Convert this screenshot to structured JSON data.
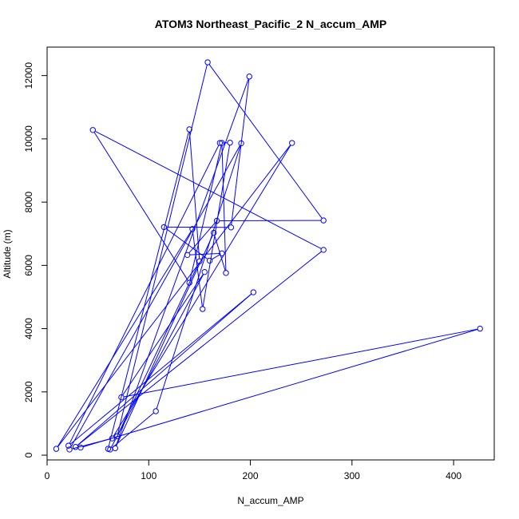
{
  "chart_data": {
    "type": "line",
    "title": "ATOM3 Northeast_Pacific_2 N_accum_AMP",
    "xlabel": "N_accum_AMP",
    "ylabel": "Altitude (m)",
    "xlim": [
      0,
      440
    ],
    "ylim": [
      -150,
      12900
    ],
    "xticks": [
      0,
      100,
      200,
      300,
      400
    ],
    "yticks": [
      0,
      2000,
      4000,
      6000,
      8000,
      10000,
      12000
    ],
    "grid": false,
    "legend": "none",
    "series_color": "#0000ff",
    "marker": "open-circle",
    "series": [
      {
        "x": [
          60,
          140,
          150,
          69,
          158,
          272,
          167,
          138,
          172,
          160,
          115,
          181,
          199,
          67,
          164,
          176,
          172,
          140,
          45,
          272,
          28,
          203,
          21,
          170,
          180,
          153,
          143,
          9,
          241,
          64,
          22,
          191,
          107,
          62,
          155,
          73,
          426,
          33
        ],
        "y": [
          200,
          10300,
          6130,
          600,
          12420,
          7420,
          7410,
          6330,
          6380,
          6150,
          7210,
          7200,
          11970,
          220,
          7030,
          5760,
          9870,
          5450,
          10280,
          6490,
          260,
          5150,
          300,
          9870,
          9880,
          4620,
          7150,
          200,
          9870,
          530,
          180,
          9860,
          1390,
          180,
          5790,
          1830,
          4000,
          240
        ]
      }
    ]
  }
}
